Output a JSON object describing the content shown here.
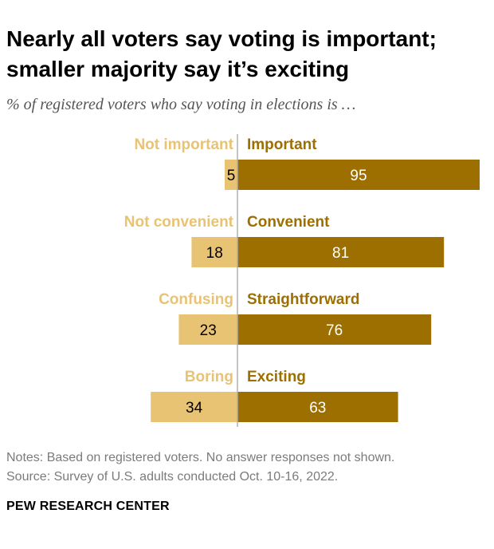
{
  "title": "Nearly all voters say voting is important; smaller majority say it’s exciting",
  "subtitle": "% of registered voters who say voting in elections is …",
  "notes": {
    "line1": "Notes: Based on registered voters. No answer responses not shown.",
    "line2": "Source: Survey of U.S. adults conducted Oct. 10-16, 2022."
  },
  "brand": "PEW RESEARCH CENTER",
  "colors": {
    "negative": "#e8c374",
    "positive": "#9c6f00",
    "axis": "#b0b0b0",
    "positive_text": "#ffffff",
    "negative_text": "#000000"
  },
  "chart_data": {
    "type": "bar",
    "orientation": "diverging-horizontal",
    "title": "Nearly all voters say voting is important; smaller majority say it’s exciting",
    "subtitle": "% of registered voters who say voting in elections is …",
    "unit": "%",
    "xlim": [
      0,
      100
    ],
    "rows": [
      {
        "negative_label": "Not important",
        "positive_label": "Important",
        "negative": 5,
        "positive": 95
      },
      {
        "negative_label": "Not convenient",
        "positive_label": "Convenient",
        "negative": 18,
        "positive": 81
      },
      {
        "negative_label": "Confusing",
        "positive_label": "Straightforward",
        "negative": 23,
        "positive": 76
      },
      {
        "negative_label": "Boring",
        "positive_label": "Exciting",
        "negative": 34,
        "positive": 63
      }
    ]
  }
}
